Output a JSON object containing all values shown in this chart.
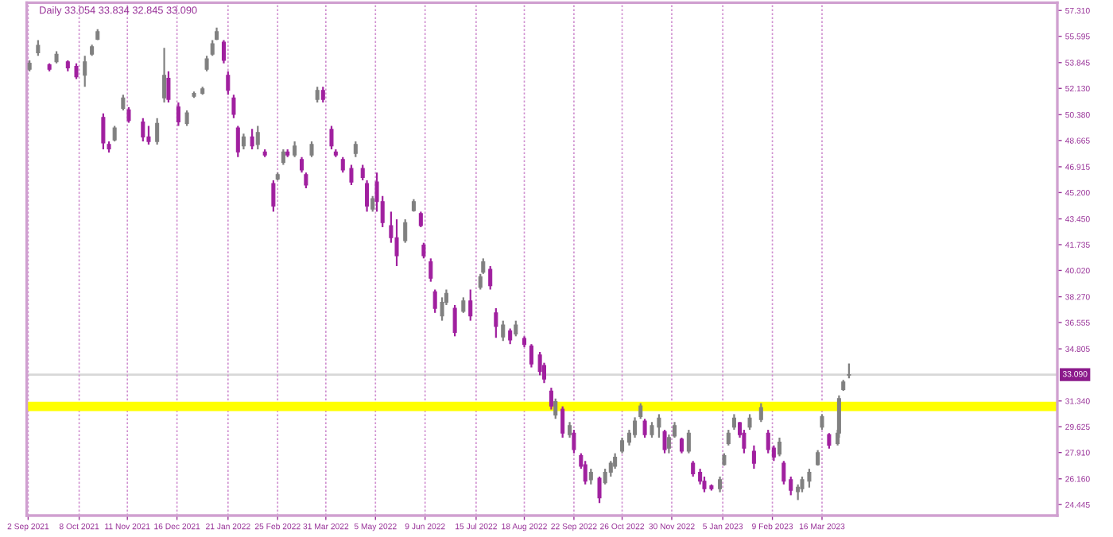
{
  "chart_data": {
    "type": "candlestick",
    "title": "Daily 33.054 33.834 32.845 33.090",
    "x": [
      "2021-09-03",
      "2021-09-09",
      "2021-09-17",
      "2021-09-22",
      "2021-09-30",
      "2021-10-06",
      "2021-10-12",
      "2021-10-17",
      "2021-10-21",
      "2021-10-25",
      "2021-10-29",
      "2021-11-02",
      "2021-11-08",
      "2021-11-12",
      "2021-11-22",
      "2021-11-26",
      "2021-12-02",
      "2021-12-07",
      "2021-12-10",
      "2021-12-17",
      "2021-12-23",
      "2021-12-28",
      "2022-01-03",
      "2022-01-06",
      "2022-01-10",
      "2022-01-13",
      "2022-01-18",
      "2022-01-21",
      "2022-01-25",
      "2022-01-28",
      "2022-02-01",
      "2022-02-07",
      "2022-02-11",
      "2022-02-16",
      "2022-02-22",
      "2022-02-25",
      "2022-03-01",
      "2022-03-04",
      "2022-03-09",
      "2022-03-14",
      "2022-03-17",
      "2022-03-21",
      "2022-03-25",
      "2022-03-29",
      "2022-04-04",
      "2022-04-07",
      "2022-04-12",
      "2022-04-18",
      "2022-04-21",
      "2022-04-26",
      "2022-04-29",
      "2022-05-03",
      "2022-05-06",
      "2022-05-10",
      "2022-05-16",
      "2022-05-20",
      "2022-05-26",
      "2022-06-01",
      "2022-06-06",
      "2022-06-08",
      "2022-06-13",
      "2022-06-16",
      "2022-06-21",
      "2022-06-24",
      "2022-06-30",
      "2022-07-06",
      "2022-07-11",
      "2022-07-18",
      "2022-07-20",
      "2022-07-25",
      "2022-07-29",
      "2022-08-03",
      "2022-08-08",
      "2022-08-12",
      "2022-08-18",
      "2022-08-23",
      "2022-08-29",
      "2022-09-01",
      "2022-09-06",
      "2022-09-09",
      "2022-09-14",
      "2022-09-19",
      "2022-09-22",
      "2022-09-27",
      "2022-09-30",
      "2022-10-04",
      "2022-10-10",
      "2022-10-14",
      "2022-10-18",
      "2022-10-21",
      "2022-10-26",
      "2022-10-31",
      "2022-11-04",
      "2022-11-08",
      "2022-11-11",
      "2022-11-16",
      "2022-11-21",
      "2022-11-25",
      "2022-11-28",
      "2022-12-02",
      "2022-12-07",
      "2022-12-12",
      "2022-12-15",
      "2022-12-20",
      "2022-12-23",
      "2022-12-28",
      "2023-01-03",
      "2023-01-06",
      "2023-01-09",
      "2023-01-13",
      "2023-01-17",
      "2023-01-20",
      "2023-01-24",
      "2023-01-27",
      "2023-02-01",
      "2023-02-06",
      "2023-02-10",
      "2023-02-14",
      "2023-02-17",
      "2023-02-22",
      "2023-02-27",
      "2023-03-02",
      "2023-03-07",
      "2023-03-13",
      "2023-03-16",
      "2023-03-21",
      "2023-03-27",
      "2023-03-28",
      "2023-03-31",
      "2023-04-04"
    ],
    "ohlc": [
      [
        53.4,
        53.99,
        53.27,
        53.8
      ],
      [
        54.5,
        55.34,
        54.3,
        55.0
      ],
      [
        53.7,
        53.79,
        53.27,
        53.4
      ],
      [
        53.9,
        54.6,
        53.79,
        54.4
      ],
      [
        53.9,
        53.99,
        53.27,
        53.5
      ],
      [
        53.6,
        53.79,
        52.75,
        52.9
      ],
      [
        53.0,
        54.3,
        52.23,
        53.9
      ],
      [
        54.4,
        55.03,
        54.3,
        54.9
      ],
      [
        55.4,
        56.07,
        55.34,
        55.9
      ],
      [
        50.2,
        50.47,
        48.08,
        48.5
      ],
      [
        48.4,
        48.6,
        47.87,
        48.1
      ],
      [
        48.7,
        49.64,
        48.6,
        49.5
      ],
      [
        50.8,
        51.71,
        50.67,
        51.5
      ],
      [
        50.7,
        50.88,
        49.84,
        50.0
      ],
      [
        49.9,
        50.15,
        48.6,
        48.9
      ],
      [
        48.9,
        49.64,
        48.39,
        48.6
      ],
      [
        48.6,
        50.15,
        48.39,
        49.8
      ],
      [
        51.5,
        54.82,
        51.19,
        53.0
      ],
      [
        52.8,
        53.27,
        51.19,
        51.4
      ],
      [
        50.9,
        51.19,
        49.64,
        49.9
      ],
      [
        49.8,
        50.67,
        49.64,
        50.5
      ],
      [
        51.6,
        51.92,
        51.5,
        51.8
      ],
      [
        51.8,
        52.23,
        51.71,
        52.1
      ],
      [
        53.4,
        54.3,
        53.27,
        54.1
      ],
      [
        54.4,
        55.34,
        54.3,
        55.1
      ],
      [
        55.4,
        56.17,
        55.34,
        55.9
      ],
      [
        55.2,
        55.34,
        53.79,
        54.0
      ],
      [
        53.0,
        53.27,
        51.71,
        52.0
      ],
      [
        51.5,
        51.71,
        50.15,
        50.4
      ],
      [
        49.5,
        49.64,
        47.56,
        47.9
      ],
      [
        48.3,
        49.12,
        48.08,
        48.9
      ],
      [
        48.9,
        49.43,
        48.08,
        48.3
      ],
      [
        48.4,
        49.64,
        48.08,
        49.2
      ],
      [
        47.9,
        48.08,
        47.56,
        47.7
      ],
      [
        45.8,
        46.01,
        43.93,
        44.3
      ],
      [
        46.1,
        46.53,
        46.01,
        46.4
      ],
      [
        47.2,
        48.08,
        47.04,
        47.9
      ],
      [
        47.9,
        48.08,
        47.56,
        47.7
      ],
      [
        47.7,
        48.6,
        47.56,
        48.3
      ],
      [
        47.4,
        47.56,
        46.53,
        46.7
      ],
      [
        46.4,
        46.53,
        45.49,
        45.7
      ],
      [
        47.7,
        48.6,
        47.56,
        48.4
      ],
      [
        51.4,
        52.23,
        51.19,
        52.0
      ],
      [
        52.0,
        52.23,
        51.19,
        51.4
      ],
      [
        49.4,
        49.64,
        48.08,
        48.3
      ],
      [
        47.9,
        48.08,
        47.56,
        47.7
      ],
      [
        47.4,
        47.56,
        46.53,
        46.7
      ],
      [
        46.8,
        47.04,
        45.7,
        45.9
      ],
      [
        47.8,
        48.6,
        47.56,
        48.4
      ],
      [
        46.8,
        47.04,
        46.01,
        46.2
      ],
      [
        45.8,
        46.01,
        43.93,
        44.3
      ],
      [
        44.1,
        44.97,
        43.93,
        44.8
      ],
      [
        45.9,
        46.53,
        43.93,
        44.6
      ],
      [
        44.6,
        44.97,
        42.9,
        43.2
      ],
      [
        43.0,
        43.93,
        41.86,
        42.2
      ],
      [
        42.2,
        43.42,
        40.31,
        41.0
      ],
      [
        42.0,
        43.42,
        41.86,
        43.2
      ],
      [
        44.0,
        44.76,
        43.93,
        44.6
      ],
      [
        43.8,
        43.93,
        42.9,
        43.0
      ],
      [
        41.7,
        41.86,
        40.82,
        41.0
      ],
      [
        40.6,
        40.82,
        39.27,
        39.5
      ],
      [
        38.6,
        38.75,
        37.2,
        37.5
      ],
      [
        37.0,
        38.23,
        36.68,
        37.9
      ],
      [
        37.9,
        38.75,
        37.72,
        38.5
      ],
      [
        37.5,
        37.72,
        35.64,
        35.9
      ],
      [
        37.3,
        38.23,
        37.2,
        38.0
      ],
      [
        38.0,
        38.75,
        36.68,
        37.0
      ],
      [
        38.9,
        39.79,
        38.75,
        39.6
      ],
      [
        39.9,
        40.82,
        39.79,
        40.6
      ],
      [
        40.1,
        40.31,
        38.75,
        39.0
      ],
      [
        37.2,
        37.51,
        35.54,
        36.3
      ],
      [
        35.6,
        36.68,
        35.33,
        36.4
      ],
      [
        36.0,
        36.16,
        35.12,
        35.4
      ],
      [
        35.8,
        36.68,
        35.64,
        36.4
      ],
      [
        35.5,
        35.64,
        34.92,
        35.1
      ],
      [
        35.0,
        35.12,
        33.57,
        33.8
      ],
      [
        34.4,
        34.6,
        33.05,
        33.3
      ],
      [
        33.7,
        33.88,
        32.53,
        32.8
      ],
      [
        32.0,
        32.22,
        30.77,
        31.0
      ],
      [
        30.4,
        31.5,
        30.15,
        31.3
      ],
      [
        30.8,
        30.98,
        28.9,
        29.2
      ],
      [
        29.1,
        29.94,
        28.9,
        29.7
      ],
      [
        29.2,
        29.42,
        27.86,
        28.1
      ],
      [
        27.7,
        27.86,
        26.83,
        27.0
      ],
      [
        27.1,
        27.35,
        25.79,
        26.0
      ],
      [
        26.1,
        26.83,
        25.79,
        26.6
      ],
      [
        26.2,
        26.31,
        24.55,
        24.9
      ],
      [
        25.9,
        26.83,
        25.79,
        26.6
      ],
      [
        26.6,
        27.35,
        26.31,
        27.2
      ],
      [
        27.0,
        27.86,
        26.83,
        27.6
      ],
      [
        28.0,
        28.9,
        27.86,
        28.7
      ],
      [
        28.6,
        29.42,
        28.38,
        29.2
      ],
      [
        29.1,
        30.25,
        28.9,
        30.0
      ],
      [
        30.3,
        31.19,
        30.15,
        31.0
      ],
      [
        30.0,
        30.15,
        28.9,
        29.1
      ],
      [
        29.1,
        29.94,
        28.9,
        29.7
      ],
      [
        29.6,
        30.46,
        28.9,
        30.2
      ],
      [
        29.3,
        29.42,
        27.86,
        28.1
      ],
      [
        28.2,
        29.11,
        27.86,
        28.9
      ],
      [
        29.0,
        29.94,
        28.9,
        29.7
      ],
      [
        28.8,
        28.9,
        27.86,
        28.0
      ],
      [
        28.0,
        29.42,
        27.86,
        29.2
      ],
      [
        27.2,
        27.35,
        26.31,
        26.5
      ],
      [
        26.6,
        26.83,
        25.79,
        26.0
      ],
      [
        26.0,
        26.31,
        25.27,
        25.5
      ],
      [
        25.7,
        25.79,
        25.38,
        25.5
      ],
      [
        25.5,
        26.31,
        25.27,
        26.1
      ],
      [
        27.1,
        27.86,
        27.04,
        27.7
      ],
      [
        28.5,
        29.42,
        28.38,
        29.2
      ],
      [
        29.6,
        30.46,
        29.42,
        30.2
      ],
      [
        29.9,
        29.94,
        28.9,
        29.1
      ],
      [
        29.2,
        29.42,
        27.86,
        28.2
      ],
      [
        29.6,
        30.46,
        29.42,
        30.2
      ],
      [
        28.0,
        28.38,
        26.83,
        27.2
      ],
      [
        30.1,
        31.19,
        29.94,
        30.9
      ],
      [
        29.2,
        29.42,
        27.86,
        28.1
      ],
      [
        28.2,
        28.38,
        27.35,
        27.6
      ],
      [
        27.8,
        28.9,
        27.66,
        28.6
      ],
      [
        27.2,
        27.35,
        25.79,
        26.0
      ],
      [
        26.1,
        26.31,
        25.07,
        25.4
      ],
      [
        25.3,
        25.79,
        24.75,
        25.6
      ],
      [
        25.5,
        26.31,
        25.27,
        26.1
      ],
      [
        26.0,
        26.83,
        25.58,
        26.6
      ],
      [
        27.1,
        28.07,
        27.04,
        27.9
      ],
      [
        29.6,
        30.46,
        29.42,
        30.3
      ],
      [
        29.1,
        29.2,
        28.17,
        28.4
      ],
      [
        28.5,
        29.42,
        28.38,
        29.2
      ],
      [
        29.2,
        31.71,
        28.9,
        31.5
      ],
      [
        32.1,
        32.74,
        32.01,
        32.6
      ],
      [
        33.054,
        33.834,
        32.845,
        33.09
      ]
    ],
    "colors": [
      "#808080",
      "#808080",
      "#a0209f",
      "#808080",
      "#a0209f",
      "#a0209f",
      "#808080",
      "#808080",
      "#808080",
      "#a0209f",
      "#a0209f",
      "#808080",
      "#808080",
      "#a0209f",
      "#a0209f",
      "#a0209f",
      "#808080",
      "#808080",
      "#a0209f",
      "#a0209f",
      "#808080",
      "#808080",
      "#808080",
      "#808080",
      "#808080",
      "#808080",
      "#a0209f",
      "#a0209f",
      "#a0209f",
      "#a0209f",
      "#808080",
      "#a0209f",
      "#808080",
      "#a0209f",
      "#a0209f",
      "#808080",
      "#808080",
      "#a0209f",
      "#808080",
      "#a0209f",
      "#a0209f",
      "#808080",
      "#808080",
      "#a0209f",
      "#a0209f",
      "#a0209f",
      "#a0209f",
      "#a0209f",
      "#808080",
      "#a0209f",
      "#a0209f",
      "#808080",
      "#a0209f",
      "#a0209f",
      "#a0209f",
      "#a0209f",
      "#808080",
      "#808080",
      "#a0209f",
      "#a0209f",
      "#a0209f",
      "#a0209f",
      "#808080",
      "#808080",
      "#a0209f",
      "#808080",
      "#a0209f",
      "#808080",
      "#808080",
      "#a0209f",
      "#a0209f",
      "#808080",
      "#a0209f",
      "#808080",
      "#a0209f",
      "#a0209f",
      "#a0209f",
      "#a0209f",
      "#a0209f",
      "#808080",
      "#a0209f",
      "#808080",
      "#a0209f",
      "#a0209f",
      "#a0209f",
      "#808080",
      "#a0209f",
      "#808080",
      "#808080",
      "#808080",
      "#808080",
      "#808080",
      "#808080",
      "#808080",
      "#a0209f",
      "#808080",
      "#808080",
      "#a0209f",
      "#808080",
      "#808080",
      "#a0209f",
      "#808080",
      "#a0209f",
      "#a0209f",
      "#a0209f",
      "#a0209f",
      "#808080",
      "#808080",
      "#808080",
      "#808080",
      "#a0209f",
      "#a0209f",
      "#808080",
      "#a0209f",
      "#808080",
      "#a0209f",
      "#a0209f",
      "#808080",
      "#a0209f",
      "#a0209f",
      "#808080",
      "#808080",
      "#808080",
      "#808080",
      "#808080",
      "#a0209f",
      "#808080",
      "#808080",
      "#808080",
      "#808080"
    ],
    "xlim": [
      "2021-09-01",
      "2023-08-29"
    ],
    "xticks": [
      {
        "value": "2021-09-02",
        "label": "2 Sep 2021"
      },
      {
        "value": "2021-10-08",
        "label": "8 Oct 2021"
      },
      {
        "value": "2021-11-11",
        "label": "11 Nov 2021"
      },
      {
        "value": "2021-12-16",
        "label": "16 Dec 2021"
      },
      {
        "value": "2022-01-21",
        "label": "21 Jan 2022"
      },
      {
        "value": "2022-02-25",
        "label": "25 Feb 2022"
      },
      {
        "value": "2022-03-31",
        "label": "31 Mar 2022"
      },
      {
        "value": "2022-05-05",
        "label": "5 May 2022"
      },
      {
        "value": "2022-06-09",
        "label": "9 Jun 2022"
      },
      {
        "value": "2022-07-15",
        "label": "15 Jul 2022"
      },
      {
        "value": "2022-08-18",
        "label": "18 Aug 2022"
      },
      {
        "value": "2022-09-22",
        "label": "22 Sep 2022"
      },
      {
        "value": "2022-10-26",
        "label": "26 Oct 2022"
      },
      {
        "value": "2022-11-30",
        "label": "30 Nov 2022"
      },
      {
        "value": "2023-01-05",
        "label": "5 Jan 2023"
      },
      {
        "value": "2023-02-09",
        "label": "9 Feb 2023"
      },
      {
        "value": "2023-03-16",
        "label": "16 Mar 2023"
      }
    ],
    "ylim": [
      23.72,
      57.83
    ],
    "yticks": [
      {
        "value": 57.31,
        "label": "57.310"
      },
      {
        "value": 55.595,
        "label": "55.595"
      },
      {
        "value": 53.845,
        "label": "53.845"
      },
      {
        "value": 52.13,
        "label": "52.130"
      },
      {
        "value": 50.38,
        "label": "50.380"
      },
      {
        "value": 48.665,
        "label": "48.665"
      },
      {
        "value": 46.915,
        "label": "46.915"
      },
      {
        "value": 45.2,
        "label": "45.200"
      },
      {
        "value": 43.45,
        "label": "43.450"
      },
      {
        "value": 41.735,
        "label": "41.735"
      },
      {
        "value": 40.02,
        "label": "40.020"
      },
      {
        "value": 38.27,
        "label": "38.270"
      },
      {
        "value": 36.555,
        "label": "36.555"
      },
      {
        "value": 34.805,
        "label": "34.805"
      },
      {
        "value": 31.34,
        "label": "31.340"
      },
      {
        "value": 29.625,
        "label": "29.625"
      },
      {
        "value": 27.91,
        "label": "27.910"
      },
      {
        "value": 26.16,
        "label": "26.160"
      },
      {
        "value": 24.445,
        "label": "24.445"
      }
    ],
    "ref_lines": [
      {
        "axis": "y",
        "value": 33.09,
        "label": "33.090",
        "color": "#d8d8d8"
      }
    ],
    "bands": [
      {
        "axis": "y",
        "from": 30.67,
        "to": 31.29,
        "color": "#ffff00"
      }
    ],
    "grid": "x"
  }
}
